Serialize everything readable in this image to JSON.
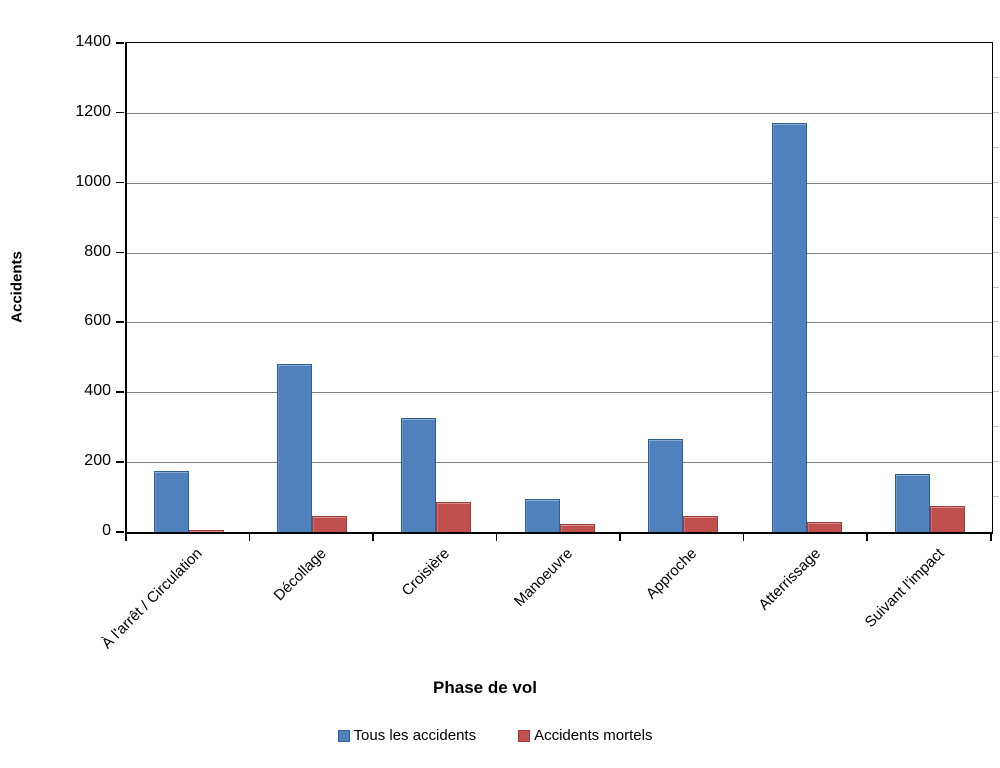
{
  "chart_data": {
    "type": "bar",
    "title": "",
    "categories": [
      "À l'arrêt / Circulation",
      "Décollage",
      "Croisière",
      "Manoeuvre",
      "Approche",
      "Atterrissage",
      "Suivant l'impact"
    ],
    "series": [
      {
        "name": "Tous les accidents",
        "color": "#4F81BD",
        "border_color": "#2F5D94",
        "values": [
          175,
          480,
          325,
          95,
          265,
          1170,
          165
        ]
      },
      {
        "name": "Accidents mortels",
        "color": "#C0504D",
        "border_color": "#9A3D3B",
        "values": [
          7,
          45,
          85,
          22,
          45,
          30,
          75
        ]
      }
    ],
    "xlabel": "Phase de vol",
    "ylabel": "Accidents",
    "ylim": [
      0,
      1400
    ],
    "yticks": [
      0,
      200,
      400,
      600,
      800,
      1000,
      1200,
      1400
    ],
    "minor_tick_step_right": 100,
    "grid": true,
    "gridline_color": "#808080",
    "legend_position": "bottom"
  }
}
